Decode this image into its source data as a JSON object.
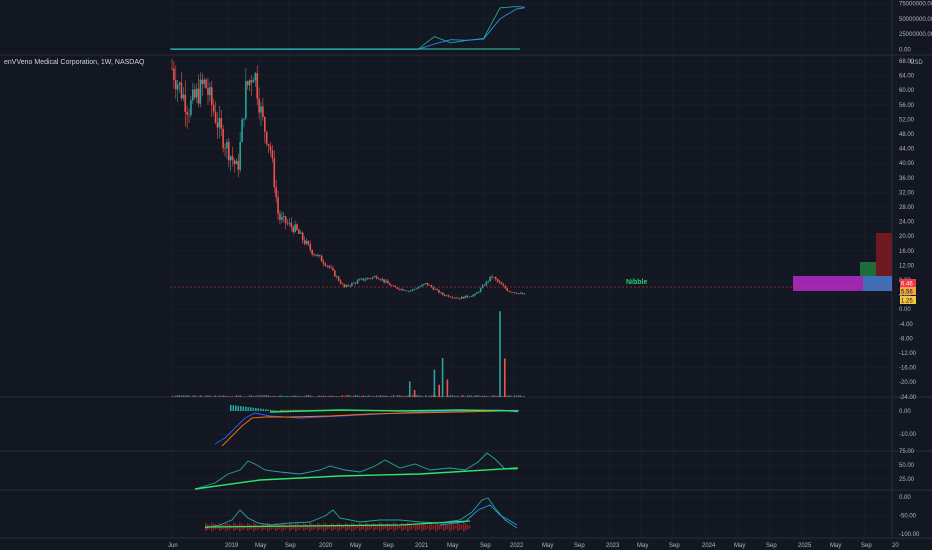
{
  "header": {
    "symbol_title": "enVVeno Medical Corporation, 1W, NASDAQ",
    "currency": "USD"
  },
  "colors": {
    "background": "#131722",
    "grid": "#1e222d",
    "up": "#26a69a",
    "down": "#ef5350",
    "purple_zone": "#9c27b0",
    "blue_zone": "#3d6fb6",
    "green_zone": "#2e7d32",
    "red_zone": "#8b1f24",
    "label_green": "#26d07c",
    "price_red": "#f23645",
    "price_yellow": "#f5c542"
  },
  "chart_data": [
    {
      "type": "line",
      "panel": "top_indicator",
      "y_ticks": [
        "75000000.00",
        "50000000.00",
        "25000000.00",
        "0.00"
      ],
      "ylim": [
        0,
        75000000
      ],
      "series": [
        {
          "values_x": [
            "2018-06",
            "2019-06",
            "2020-06",
            "2020-12",
            "2021-01",
            "2021-02",
            "2021-04",
            "2021-06",
            "2021-08",
            "2021-10",
            "2021-12",
            "2022-01"
          ],
          "values": [
            0,
            100000,
            200000,
            300000,
            11000000,
            21000000,
            11000000,
            15000000,
            18000000,
            68000000,
            70000000,
            69000000
          ]
        },
        {
          "values_x": [
            "2018-06",
            "2019-06",
            "2020-06",
            "2020-12",
            "2021-02",
            "2021-04",
            "2021-06",
            "2021-08",
            "2021-10",
            "2021-12",
            "2022-01"
          ],
          "values": [
            0,
            80000,
            150000,
            250000,
            9000000,
            16000000,
            15000000,
            17000000,
            50000000,
            66000000,
            68000000
          ]
        }
      ]
    },
    {
      "type": "candlestick",
      "panel": "price",
      "y_ticks": [
        "68.00",
        "64.00",
        "60.00",
        "56.00",
        "52.00",
        "48.00",
        "44.00",
        "40.00",
        "36.00",
        "32.00",
        "28.00",
        "24.00",
        "20.00",
        "16.00",
        "12.00",
        "8.00",
        "4.00",
        "0.00",
        "-4.00",
        "-8.00",
        "-12.00",
        "-16.00",
        "-20.00",
        "-24.00"
      ],
      "ylim": [
        -24,
        68
      ],
      "x_ticks": [
        "Jun",
        "2019",
        "May",
        "Sep",
        "2020",
        "May",
        "Sep",
        "2021",
        "May",
        "Sep",
        "2022",
        "May",
        "Sep",
        "2023",
        "May",
        "Sep",
        "2024",
        "May",
        "Sep",
        "2025",
        "May",
        "Sep",
        "20"
      ],
      "current_price_labels": [
        "6.46",
        "5.56",
        "1.25"
      ],
      "annotation": "Nibble",
      "price_path": [
        {
          "t": "2018-06",
          "close": 66
        },
        {
          "t": "2018-08",
          "close": 55
        },
        {
          "t": "2018-10",
          "close": 62
        },
        {
          "t": "2018-12",
          "close": 48
        },
        {
          "t": "2019-02",
          "close": 38
        },
        {
          "t": "2019-03",
          "close": 60
        },
        {
          "t": "2019-04",
          "close": 66
        },
        {
          "t": "2019-05",
          "close": 52
        },
        {
          "t": "2019-06",
          "close": 44
        },
        {
          "t": "2019-07",
          "close": 25
        },
        {
          "t": "2019-09",
          "close": 22
        },
        {
          "t": "2019-11",
          "close": 16
        },
        {
          "t": "2020-01",
          "close": 12
        },
        {
          "t": "2020-03",
          "close": 6
        },
        {
          "t": "2020-05",
          "close": 8
        },
        {
          "t": "2020-07",
          "close": 9
        },
        {
          "t": "2020-09",
          "close": 6
        },
        {
          "t": "2020-11",
          "close": 5
        },
        {
          "t": "2021-01",
          "close": 7
        },
        {
          "t": "2021-03",
          "close": 4
        },
        {
          "t": "2021-05",
          "close": 3
        },
        {
          "t": "2021-07",
          "close": 4
        },
        {
          "t": "2021-09",
          "close": 9
        },
        {
          "t": "2021-11",
          "close": 5
        },
        {
          "t": "2022-01",
          "close": 4
        }
      ],
      "volume_spikes": [
        {
          "t": "2020-11",
          "value": 4
        },
        {
          "t": "2021-02",
          "value": 7
        },
        {
          "t": "2021-03",
          "value": 10
        },
        {
          "t": "2021-10",
          "value": 22
        }
      ]
    },
    {
      "type": "line",
      "panel": "macd",
      "y_ticks": [
        "0.00",
        "-10.00"
      ],
      "ylim": [
        -15,
        3
      ]
    },
    {
      "type": "line",
      "panel": "rsi",
      "y_ticks": [
        "75.00",
        "50.00",
        "25.00"
      ],
      "ylim": [
        10,
        85
      ]
    },
    {
      "type": "line",
      "panel": "oscillator",
      "y_ticks": [
        "0.00",
        "-50.00",
        "-100.00"
      ],
      "ylim": [
        -105,
        5
      ]
    }
  ]
}
